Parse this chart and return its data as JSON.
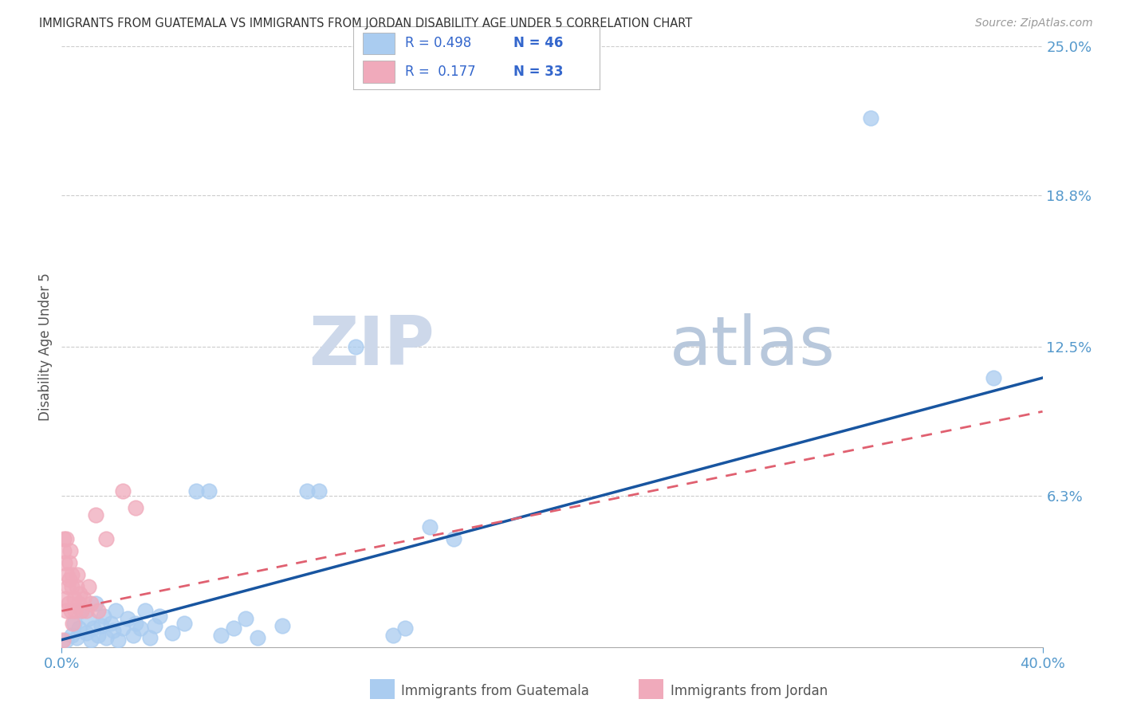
{
  "title": "IMMIGRANTS FROM GUATEMALA VS IMMIGRANTS FROM JORDAN DISABILITY AGE UNDER 5 CORRELATION CHART",
  "source": "Source: ZipAtlas.com",
  "ylabel": "Disability Age Under 5",
  "xlim": [
    0.0,
    40.0
  ],
  "ylim": [
    0.0,
    25.0
  ],
  "yticks_right": [
    0.0,
    6.3,
    12.5,
    18.8,
    25.0
  ],
  "ytick_labels_right": [
    "",
    "6.3%",
    "12.5%",
    "18.8%",
    "25.0%"
  ],
  "guatemala_color": "#aaccf0",
  "jordan_color": "#f0aabb",
  "line_guatemala_color": "#1855a0",
  "line_jordan_color": "#e06070",
  "background_color": "#ffffff",
  "watermark_color": "#dde8f5",
  "grid_color": "#cccccc",
  "tick_color": "#5599cc",
  "title_color": "#333333",
  "source_color": "#999999",
  "legend_text_color": "#3366cc",
  "legend_r1": "R = 0.498",
  "legend_n1": "N = 46",
  "legend_r2": "R =  0.177",
  "legend_n2": "N = 33",
  "guatemala_scatter": [
    [
      0.2,
      0.3
    ],
    [
      0.4,
      0.5
    ],
    [
      0.5,
      1.0
    ],
    [
      0.6,
      0.4
    ],
    [
      0.7,
      0.8
    ],
    [
      0.8,
      1.5
    ],
    [
      1.0,
      0.6
    ],
    [
      1.1,
      1.2
    ],
    [
      1.2,
      0.3
    ],
    [
      1.3,
      0.8
    ],
    [
      1.4,
      1.8
    ],
    [
      1.5,
      0.5
    ],
    [
      1.6,
      0.9
    ],
    [
      1.7,
      1.3
    ],
    [
      1.8,
      0.4
    ],
    [
      2.0,
      1.0
    ],
    [
      2.1,
      0.7
    ],
    [
      2.2,
      1.5
    ],
    [
      2.3,
      0.3
    ],
    [
      2.5,
      0.8
    ],
    [
      2.7,
      1.2
    ],
    [
      2.9,
      0.5
    ],
    [
      3.0,
      1.0
    ],
    [
      3.2,
      0.8
    ],
    [
      3.4,
      1.5
    ],
    [
      3.6,
      0.4
    ],
    [
      3.8,
      0.9
    ],
    [
      4.0,
      1.3
    ],
    [
      4.5,
      0.6
    ],
    [
      5.0,
      1.0
    ],
    [
      5.5,
      6.5
    ],
    [
      6.0,
      6.5
    ],
    [
      6.5,
      0.5
    ],
    [
      7.0,
      0.8
    ],
    [
      7.5,
      1.2
    ],
    [
      8.0,
      0.4
    ],
    [
      9.0,
      0.9
    ],
    [
      10.0,
      6.5
    ],
    [
      10.5,
      6.5
    ],
    [
      12.0,
      12.5
    ],
    [
      13.5,
      0.5
    ],
    [
      14.0,
      0.8
    ],
    [
      15.0,
      5.0
    ],
    [
      16.0,
      4.5
    ],
    [
      33.0,
      22.0
    ],
    [
      38.0,
      11.2
    ]
  ],
  "jordan_scatter": [
    [
      0.05,
      0.3
    ],
    [
      0.08,
      4.5
    ],
    [
      0.1,
      4.0
    ],
    [
      0.12,
      3.5
    ],
    [
      0.15,
      2.0
    ],
    [
      0.18,
      1.5
    ],
    [
      0.2,
      4.5
    ],
    [
      0.22,
      3.0
    ],
    [
      0.25,
      2.5
    ],
    [
      0.28,
      1.8
    ],
    [
      0.3,
      3.5
    ],
    [
      0.33,
      2.8
    ],
    [
      0.35,
      4.0
    ],
    [
      0.38,
      1.5
    ],
    [
      0.4,
      2.5
    ],
    [
      0.42,
      3.0
    ],
    [
      0.45,
      1.0
    ],
    [
      0.5,
      2.0
    ],
    [
      0.55,
      1.5
    ],
    [
      0.6,
      2.5
    ],
    [
      0.65,
      3.0
    ],
    [
      0.7,
      1.8
    ],
    [
      0.75,
      2.2
    ],
    [
      0.8,
      1.5
    ],
    [
      0.9,
      2.0
    ],
    [
      1.0,
      1.5
    ],
    [
      1.1,
      2.5
    ],
    [
      1.2,
      1.8
    ],
    [
      1.4,
      5.5
    ],
    [
      1.5,
      1.5
    ],
    [
      1.8,
      4.5
    ],
    [
      2.5,
      6.5
    ],
    [
      3.0,
      5.8
    ]
  ],
  "line_guat_x0": 0.0,
  "line_guat_y0": 0.3,
  "line_guat_x1": 40.0,
  "line_guat_y1": 11.2,
  "line_jord_x0": 0.0,
  "line_jord_y0": 1.5,
  "line_jord_x1": 40.0,
  "line_jord_y1": 9.8
}
